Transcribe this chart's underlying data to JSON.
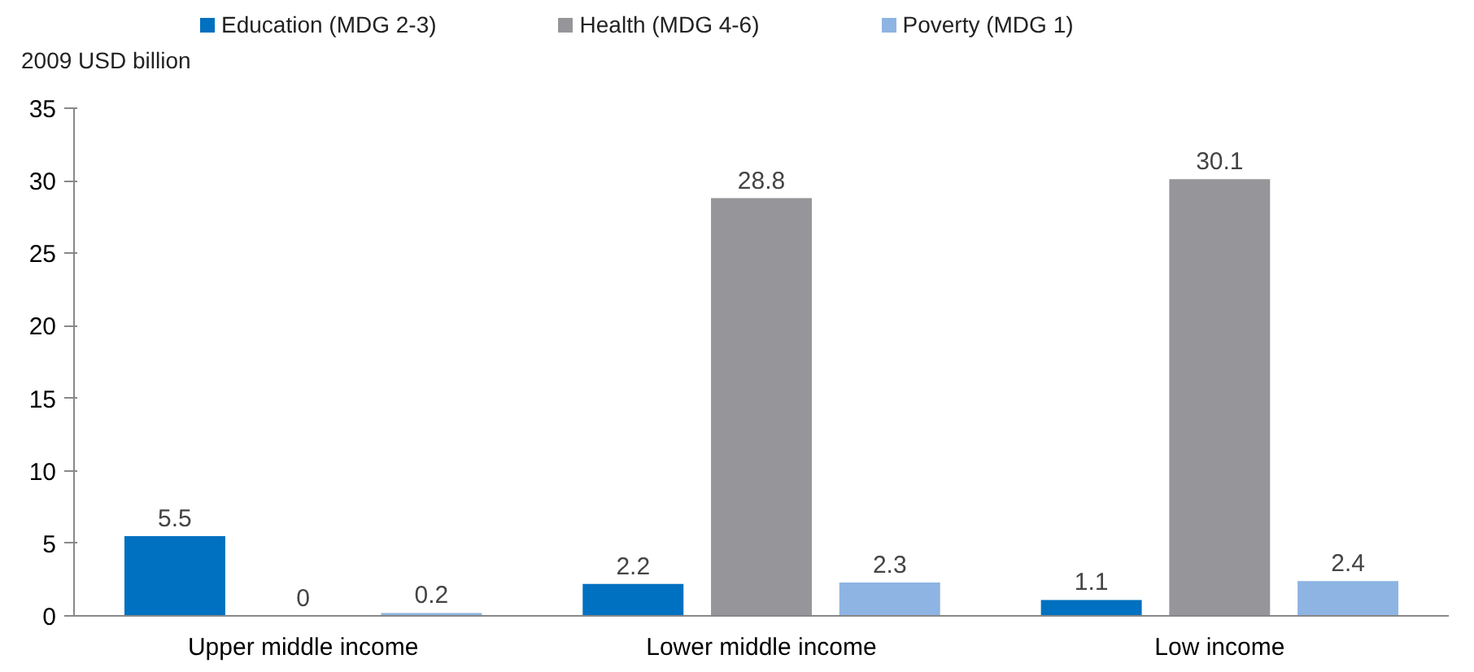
{
  "chart_data": {
    "type": "bar",
    "ylabel": "2009 USD billion",
    "categories": [
      "Upper middle income",
      "Lower middle income",
      "Low income"
    ],
    "series": [
      {
        "name": "Education (MDG 2-3)",
        "color": "#0070c0",
        "values": [
          5.5,
          2.2,
          1.1
        ]
      },
      {
        "name": "Health (MDG 4-6)",
        "color": "#96969a",
        "values": [
          0,
          28.8,
          30.1
        ]
      },
      {
        "name": "Poverty (MDG 1)",
        "color": "#8db4e2",
        "values": [
          0.2,
          2.3,
          2.4
        ]
      }
    ],
    "ylim": [
      0,
      35
    ],
    "yticks": [
      0,
      5,
      10,
      15,
      20,
      25,
      30,
      35
    ],
    "grid": false,
    "legend": "top",
    "data_labels": true
  }
}
